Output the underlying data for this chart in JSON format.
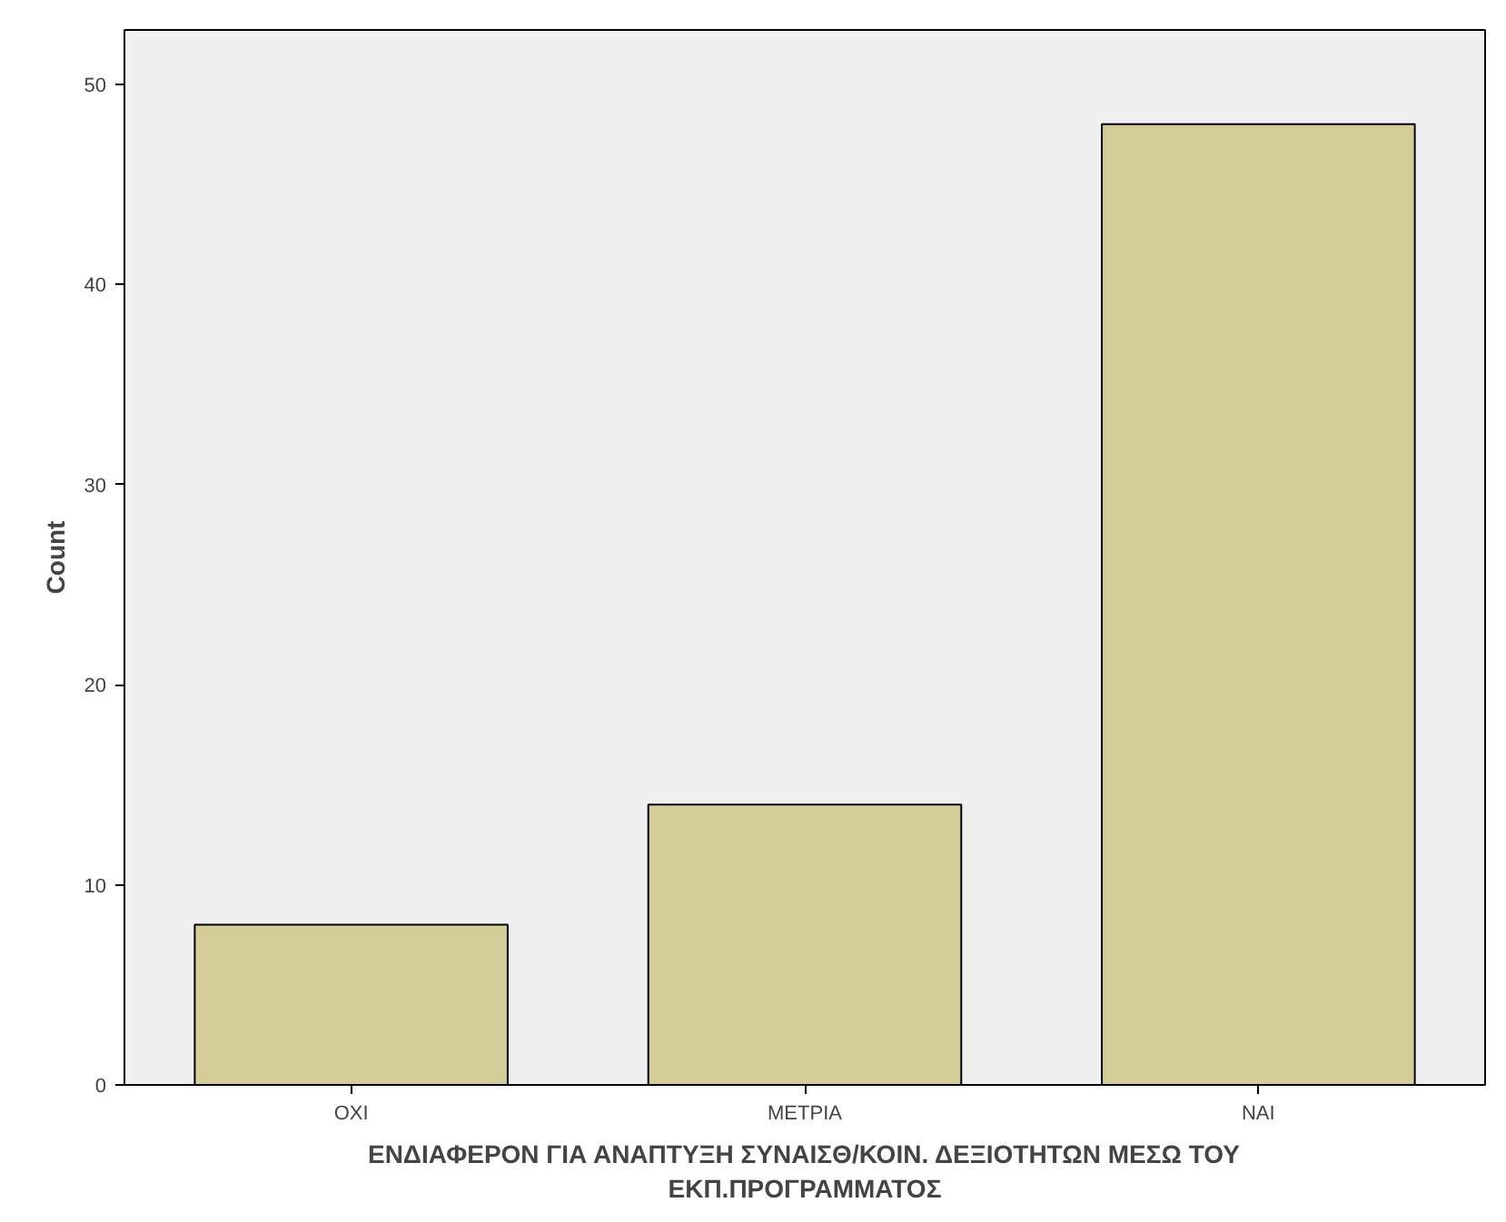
{
  "chart_data": {
    "type": "bar",
    "xlabel": "ΕΝΔΙΑΦΕΡΟΝ ΓΙΑ ΑΝΑΠΤΥΞΗ ΣΥΝΑΙΣΘ/ΚΟΙΝ. ΔΕΞΙΟΤΗΤΩΝ ΜΕΣΩ ΤΟΥ ΕΚΠ.ΠΡΟΓΡΑΜΜΑΤΟΣ",
    "ylabel": "Count",
    "categories": [
      "ΟΧΙ",
      "ΜΕΤΡΙΑ",
      "ΝΑΙ"
    ],
    "values": [
      8,
      14,
      48
    ],
    "color": "#d3ce97",
    "ylim": [
      0,
      52.7
    ],
    "yticks": [
      0,
      10,
      20,
      30,
      40,
      50
    ],
    "grid": false
  }
}
